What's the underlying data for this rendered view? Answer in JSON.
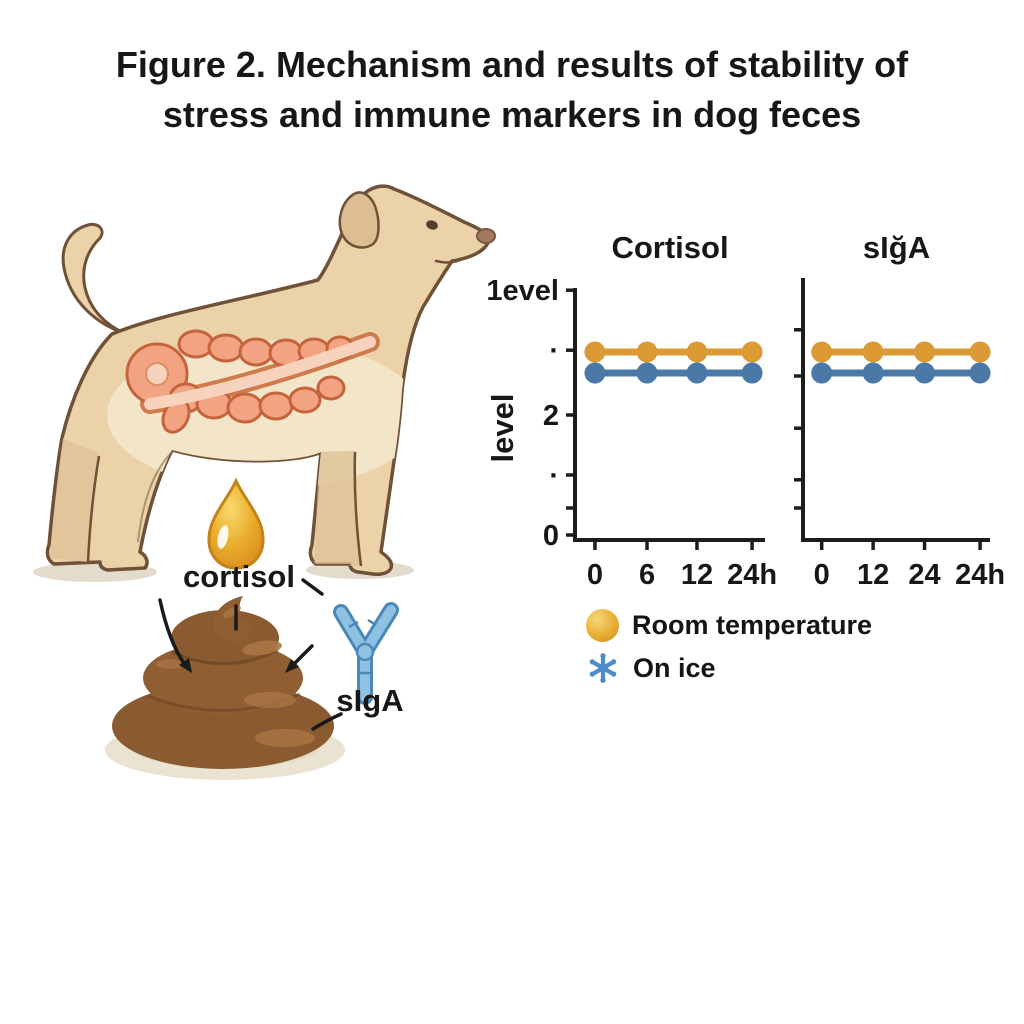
{
  "figure_title": {
    "line1": "Figure 2. Mechanism and results of stability of",
    "line2": "stress and immune markers in dog feces"
  },
  "mechanism": {
    "cortisol_label": "cortisol",
    "siga_label": "sIgA"
  },
  "icons": {
    "dog": "dog-side-view-with-intestines",
    "droplet": "cortisol-droplet",
    "feces": "feces-pile",
    "antibody": "antibody-y-shape",
    "legend_room_temperature": "gold-sphere",
    "legend_on_ice": "snowflake"
  },
  "chart_data": [
    {
      "type": "line",
      "title": "Cortisol",
      "ylabel": "level",
      "xlabel": "",
      "x_tick_labels": [
        "0",
        "6",
        "12",
        "24h"
      ],
      "y_ticks": [
        {
          "value": 0,
          "label": "0"
        },
        {
          "value": 0.45,
          "label": ""
        },
        {
          "value": 1,
          "label": "·"
        },
        {
          "value": 2,
          "label": "2"
        },
        {
          "value": 3.08,
          "label": "·"
        },
        {
          "value": 4.08,
          "label": "1evel"
        }
      ],
      "ylim": [
        0,
        4.2
      ],
      "grid": false,
      "series": [
        {
          "name": "Room temperature",
          "color": "#DC9A35",
          "values": [
            3.05,
            3.05,
            3.05,
            3.05
          ]
        },
        {
          "name": "On ice",
          "color": "#4A79A8",
          "values": [
            2.7,
            2.7,
            2.7,
            2.7
          ]
        }
      ]
    },
    {
      "type": "line",
      "title": "sIğA",
      "ylabel": "",
      "xlabel": "",
      "x_tick_labels": [
        "0",
        "12",
        "24",
        "24h"
      ],
      "y_ticks": [
        {
          "value": 0.45,
          "label": ""
        },
        {
          "value": 0.92,
          "label": ""
        },
        {
          "value": 1.78,
          "label": ""
        },
        {
          "value": 2.65,
          "label": ""
        },
        {
          "value": 3.42,
          "label": ""
        }
      ],
      "ylim": [
        0,
        4.35
      ],
      "grid": false,
      "series": [
        {
          "name": "Room temperature",
          "color": "#DC9A35",
          "values": [
            3.05,
            3.05,
            3.05,
            3.05
          ]
        },
        {
          "name": "On ice",
          "color": "#4A79A8",
          "values": [
            2.7,
            2.7,
            2.7,
            2.7
          ]
        }
      ]
    }
  ],
  "legend": {
    "items": [
      {
        "label": "Room temperature",
        "icon": "gold-sphere",
        "color": "#E2A32F"
      },
      {
        "label": "On ice",
        "icon": "snowflake",
        "color": "#4E8BC8"
      }
    ]
  },
  "colors": {
    "accent_orange": "#DC9A35",
    "accent_blue": "#4A79A8",
    "dog_body": "#EBD2A8",
    "dog_outline": "#6F5138",
    "intestine": "#F2A482",
    "droplet_gold": "#E8A92B",
    "poop_brown": "#8A5A30",
    "antibody_blue": "#8FC2E2"
  }
}
